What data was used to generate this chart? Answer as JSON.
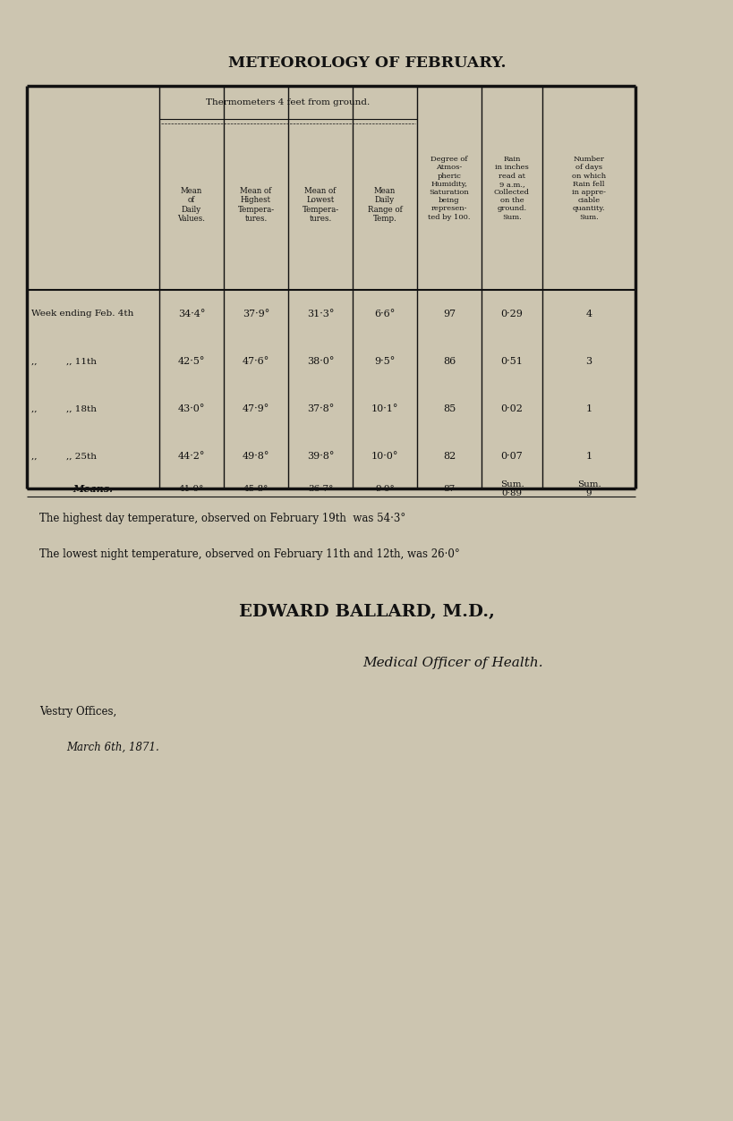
{
  "title_text": "METEOROLOGY OF FEBRUARY.",
  "bg_color": "#ccc5b0",
  "header_row1": "Thermometers 4 feet from ground.",
  "col_header_thermo": [
    "Mean\nof\nDaily\nValues.",
    "Mean of\nHighest\nTempera-\ntures.",
    "Mean of\nLowest\nTempera-\ntures.",
    "Mean\nDaily\nRange of\nTemp."
  ],
  "col_header_right": [
    "Degree of\nAtmos-\npheric\nHumidity,\nSaturation\nbeing\nrepresen-\nted by 100.",
    "Rain\nin inches\nread at\n9 a.m.,\nCollected\non the\nground.\nSum.",
    "Number\nof days\non which\nRain fell\nin appre-\nciable\nquantity.\nSum."
  ],
  "row_labels": [
    "Week ending Feb. 4th",
    "\"         \" 11th",
    "\"         \" 18th",
    "\"         \" 25th"
  ],
  "data_rows": [
    [
      "34·4°",
      "37·9°",
      "31·3°",
      "6·6°",
      "97",
      "0·29",
      "4"
    ],
    [
      "42·5°",
      "47·6°",
      "38·0°",
      "9·5°",
      "86",
      "0·51",
      "3"
    ],
    [
      "43·0°",
      "47·9°",
      "37·8°",
      "10·1°",
      "85",
      "0·02",
      "1"
    ],
    [
      "44·2°",
      "49·8°",
      "39·8°",
      "10·0°",
      "82",
      "0·07",
      "1"
    ]
  ],
  "means_label": "Means.",
  "means_row": [
    "41·0°",
    "45·8°",
    "36·7°",
    "9·0°",
    "87",
    "Sum.\n0·89",
    "Sum.\n9"
  ],
  "note1": "The highest day temperature, observed on February 19th  was 54·3°",
  "note2": "The lowest night temperature, observed on February 11th and 12th, was 26·0°",
  "author": "EDWARD BALLARD, M.D.,",
  "role": "Medical Officer of Health.",
  "office": "Vestry Offices,",
  "date": "March 6th, 1871."
}
